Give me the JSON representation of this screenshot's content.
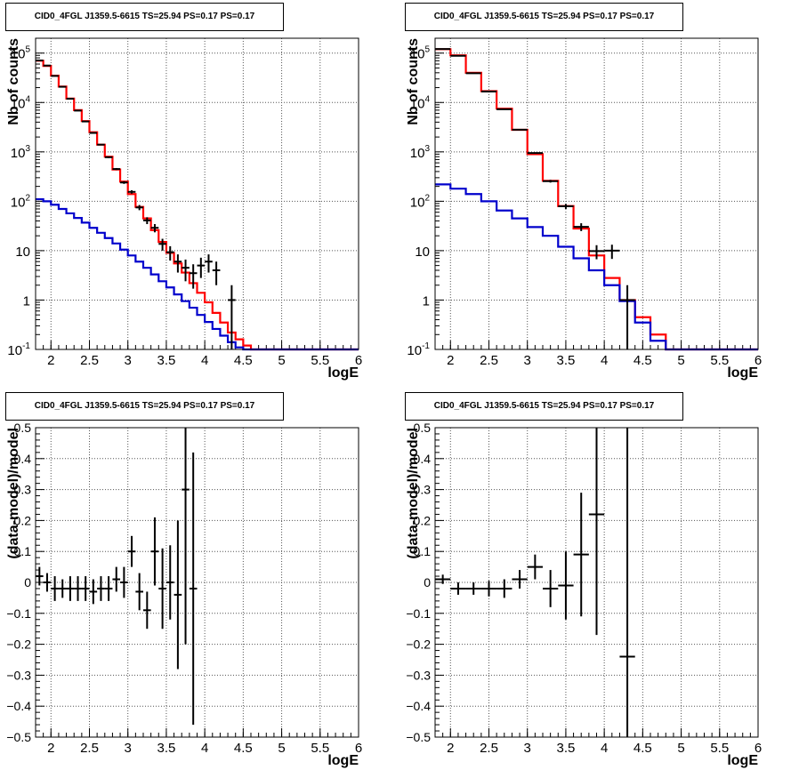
{
  "chart_data": [
    {
      "type": "step-histogram",
      "title": "CID0_4FGL J1359.5-6615 TS=25.94 PS=0.17 PS=0.17",
      "xlabel": "logE",
      "ylabel": "Nb of counts",
      "log_y": true,
      "xlim": [
        1.8,
        6.0
      ],
      "ylim": [
        0.1,
        200000
      ],
      "grid": true,
      "x_ticks": [
        "2",
        "2.5",
        "3",
        "3.5",
        "4",
        "4.5",
        "5",
        "5.5",
        "6"
      ],
      "y_ticks": [
        {
          "v": 0.1,
          "mant": "10",
          "exp": "-1"
        },
        {
          "v": 1,
          "mant": "1",
          "exp": ""
        },
        {
          "v": 10,
          "mant": "10",
          "exp": ""
        },
        {
          "v": 100,
          "mant": "10",
          "exp": "2"
        },
        {
          "v": 1000,
          "mant": "10",
          "exp": "3"
        },
        {
          "v": 10000,
          "mant": "10",
          "exp": "4"
        },
        {
          "v": 100000,
          "mant": "10",
          "exp": "5"
        }
      ],
      "series": [
        {
          "role": "total model",
          "color": "#ff0000",
          "edges": [
            1.8,
            1.9,
            2.0,
            2.1,
            2.2,
            2.3,
            2.4,
            2.5,
            2.6,
            2.7,
            2.8,
            2.9,
            3.0,
            3.1,
            3.2,
            3.3,
            3.4,
            3.5,
            3.6,
            3.7,
            3.8,
            3.9,
            4.0,
            4.1,
            4.2,
            4.3,
            4.4,
            4.5,
            4.6,
            4.7,
            4.8,
            4.9,
            5.0,
            6.0
          ],
          "values": [
            70000,
            55000,
            35000,
            21000,
            12000,
            7000,
            4200,
            2500,
            1400,
            800,
            440,
            250,
            140,
            77,
            45,
            26,
            15,
            9,
            5.5,
            3.6,
            2.2,
            1.4,
            0.9,
            0.55,
            0.35,
            0.22,
            0.16,
            0.12,
            0.1,
            0.1,
            0.1,
            0.1,
            0.1
          ]
        },
        {
          "role": "source model",
          "color": "#0000cc",
          "edges": [
            1.8,
            1.9,
            2.0,
            2.1,
            2.2,
            2.3,
            2.4,
            2.5,
            2.6,
            2.7,
            2.8,
            2.9,
            3.0,
            3.1,
            3.2,
            3.3,
            3.4,
            3.5,
            3.6,
            3.7,
            3.8,
            3.9,
            4.0,
            4.1,
            4.2,
            4.3,
            4.4,
            4.5,
            4.6,
            4.7,
            4.8,
            4.9,
            5.0,
            6.0
          ],
          "values": [
            110,
            100,
            85,
            70,
            57,
            46,
            37,
            29,
            23,
            18,
            14,
            10.5,
            8,
            6,
            4.5,
            3.3,
            2.4,
            1.8,
            1.3,
            0.95,
            0.7,
            0.5,
            0.36,
            0.26,
            0.19,
            0.14,
            0.11,
            0.1,
            0.1,
            0.1,
            0.1,
            0.1,
            0.1
          ]
        }
      ],
      "data_points": {
        "color": "#000000",
        "x": [
          1.85,
          1.95,
          2.05,
          2.15,
          2.25,
          2.35,
          2.45,
          2.55,
          2.65,
          2.75,
          2.85,
          2.95,
          3.05,
          3.15,
          3.25,
          3.35,
          3.45,
          3.55,
          3.65,
          3.75,
          3.85,
          3.95,
          4.05,
          4.15,
          4.35
        ],
        "xerr": 0.05,
        "y": [
          71000,
          56000,
          34500,
          20800,
          11900,
          6850,
          4130,
          2420,
          1400,
          780,
          450,
          240,
          155,
          75,
          41,
          29,
          13.7,
          9.3,
          6,
          4.5,
          3.5,
          5,
          6,
          4,
          1
        ],
        "yerr": [
          300,
          250,
          200,
          150,
          110,
          80,
          65,
          50,
          37,
          28,
          21,
          15,
          12,
          9,
          6.5,
          5.5,
          3.7,
          3,
          2.4,
          2.1,
          1.8,
          2.2,
          2.4,
          2,
          1
        ]
      }
    },
    {
      "type": "step-histogram",
      "title": "CID0_4FGL J1359.5-6615 TS=25.94 PS=0.17 PS=0.17",
      "xlabel": "logE",
      "ylabel": "Nb of counts",
      "log_y": true,
      "xlim": [
        1.8,
        6.0
      ],
      "ylim": [
        0.1,
        200000
      ],
      "grid": true,
      "x_ticks": [
        "2",
        "2.5",
        "3",
        "3.5",
        "4",
        "4.5",
        "5",
        "5.5",
        "6"
      ],
      "y_ticks": [
        {
          "v": 0.1,
          "mant": "10",
          "exp": "-1"
        },
        {
          "v": 1,
          "mant": "1",
          "exp": ""
        },
        {
          "v": 10,
          "mant": "10",
          "exp": ""
        },
        {
          "v": 100,
          "mant": "10",
          "exp": "2"
        },
        {
          "v": 1000,
          "mant": "10",
          "exp": "3"
        },
        {
          "v": 10000,
          "mant": "10",
          "exp": "4"
        },
        {
          "v": 100000,
          "mant": "10",
          "exp": "5"
        }
      ],
      "series": [
        {
          "role": "total model",
          "color": "#ff0000",
          "edges": [
            1.8,
            2.0,
            2.2,
            2.4,
            2.6,
            2.8,
            3.0,
            3.2,
            3.4,
            3.6,
            3.8,
            4.0,
            4.2,
            4.4,
            4.6,
            4.8,
            5.0,
            6.0
          ],
          "values": [
            120000,
            90000,
            40000,
            17000,
            7500,
            2800,
            900,
            260,
            80,
            28,
            8,
            2.8,
            1,
            0.45,
            0.2,
            0.1,
            0.1
          ]
        },
        {
          "role": "source model",
          "color": "#0000cc",
          "edges": [
            1.8,
            2.0,
            2.2,
            2.4,
            2.6,
            2.8,
            3.0,
            3.2,
            3.4,
            3.6,
            3.8,
            4.0,
            4.2,
            4.4,
            4.6,
            4.8,
            5.0,
            6.0
          ],
          "values": [
            220,
            180,
            140,
            100,
            65,
            45,
            30,
            20,
            12,
            7,
            4,
            2,
            0.95,
            0.35,
            0.15,
            0.1,
            0.1
          ]
        }
      ],
      "data_points": {
        "color": "#000000",
        "x": [
          1.9,
          2.1,
          2.3,
          2.5,
          2.7,
          2.9,
          3.1,
          3.3,
          3.5,
          3.7,
          3.9,
          4.1,
          4.3
        ],
        "xerr": 0.1,
        "y": [
          121000,
          88000,
          39000,
          16700,
          7300,
          2810,
          945,
          255,
          79,
          30.4,
          9.8,
          10,
          1
        ],
        "yerr": [
          350,
          300,
          200,
          130,
          85,
          53,
          31,
          16,
          9,
          5.5,
          3.1,
          3.2,
          1
        ]
      }
    },
    {
      "type": "scatter-errorbars",
      "title": "CID0_4FGL J1359.5-6615 TS=25.94 PS=0.17 PS=0.17",
      "xlabel": "logE",
      "ylabel": "(data-model)/model",
      "xlim": [
        1.8,
        6.0
      ],
      "ylim": [
        -0.5,
        0.5
      ],
      "grid": true,
      "x_ticks": [
        "2",
        "2.5",
        "3",
        "3.5",
        "4",
        "4.5",
        "5",
        "5.5",
        "6"
      ],
      "y_ticks": [
        "−0.5",
        "−0.4",
        "−0.3",
        "−0.2",
        "−0.1",
        "0",
        "0.1",
        "0.2",
        "0.3",
        "0.4",
        "0.5"
      ],
      "points": {
        "color": "#000000",
        "x": [
          1.85,
          1.95,
          2.05,
          2.15,
          2.25,
          2.35,
          2.45,
          2.55,
          2.65,
          2.75,
          2.85,
          2.95,
          3.05,
          3.15,
          3.25,
          3.35,
          3.45,
          3.55,
          3.65,
          3.75,
          3.85
        ],
        "xerr": 0.05,
        "y": [
          0.02,
          0.0,
          -0.02,
          -0.02,
          -0.02,
          -0.02,
          -0.02,
          -0.03,
          -0.02,
          -0.02,
          0.01,
          0.0,
          0.1,
          -0.03,
          -0.09,
          0.1,
          -0.02,
          0.0,
          -0.04,
          0.3,
          -0.02
        ],
        "yerr": [
          0.03,
          0.03,
          0.04,
          0.03,
          0.04,
          0.04,
          0.04,
          0.04,
          0.04,
          0.04,
          0.04,
          0.05,
          0.05,
          0.06,
          0.06,
          0.11,
          0.13,
          0.12,
          0.24,
          0.5,
          0.44
        ]
      }
    },
    {
      "type": "scatter-errorbars",
      "title": "CID0_4FGL J1359.5-6615 TS=25.94 PS=0.17 PS=0.17",
      "xlabel": "logE",
      "ylabel": "(data-model)/model",
      "xlim": [
        1.8,
        6.0
      ],
      "ylim": [
        -0.5,
        0.5
      ],
      "grid": true,
      "x_ticks": [
        "2",
        "2.5",
        "3",
        "3.5",
        "4",
        "4.5",
        "5",
        "5.5",
        "6"
      ],
      "y_ticks": [
        "−0.5",
        "−0.4",
        "−0.3",
        "−0.2",
        "−0.1",
        "0",
        "0.1",
        "0.2",
        "0.3",
        "0.4",
        "0.5"
      ],
      "points": {
        "color": "#000000",
        "x": [
          1.9,
          2.1,
          2.3,
          2.5,
          2.7,
          2.9,
          3.1,
          3.3,
          3.5,
          3.7,
          3.9,
          4.3
        ],
        "xerr": 0.1,
        "y": [
          0.01,
          -0.02,
          -0.02,
          -0.02,
          -0.02,
          0.01,
          0.05,
          -0.02,
          -0.01,
          0.09,
          0.22,
          -0.24
        ],
        "yerr": [
          0.015,
          0.02,
          0.02,
          0.025,
          0.03,
          0.03,
          0.04,
          0.06,
          0.11,
          0.2,
          0.39,
          0.76
        ]
      }
    }
  ]
}
